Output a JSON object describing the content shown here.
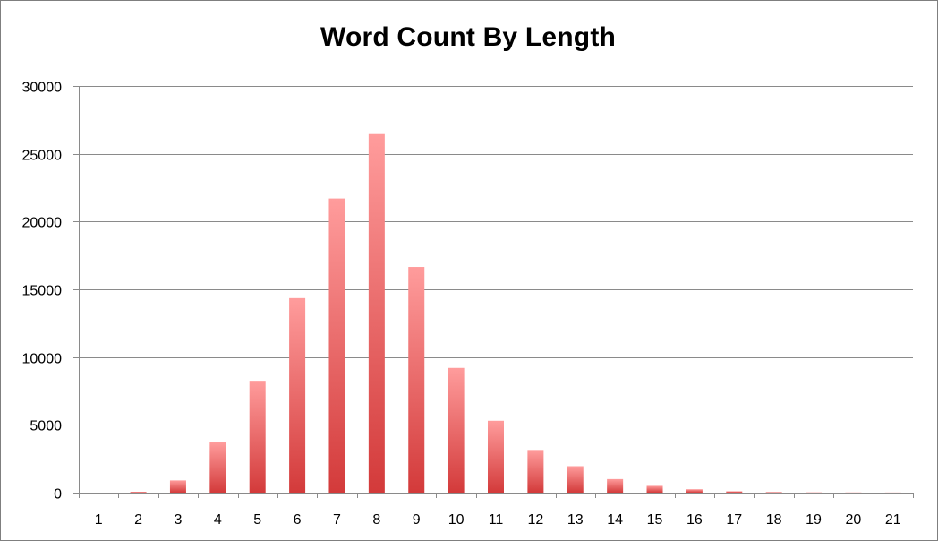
{
  "chart_data": {
    "type": "bar",
    "title": "Word Count By Length",
    "xlabel": "",
    "ylabel": "",
    "categories": [
      "1",
      "2",
      "3",
      "4",
      "5",
      "6",
      "7",
      "8",
      "9",
      "10",
      "11",
      "12",
      "13",
      "14",
      "15",
      "16",
      "17",
      "18",
      "19",
      "20",
      "21"
    ],
    "series": [
      {
        "values": [
          0,
          60,
          900,
          3700,
          8250,
          14350,
          21700,
          26450,
          16650,
          9200,
          5300,
          3150,
          1950,
          1000,
          500,
          250,
          100,
          40,
          20,
          15,
          10
        ]
      }
    ],
    "ylim": [
      0,
      30000
    ],
    "yticks": [
      "0",
      "5000",
      "10000",
      "15000",
      "20000",
      "25000",
      "30000"
    ],
    "grid": true,
    "legend": "none",
    "colors": {
      "bar_top": "#ff9c9c",
      "bar_bottom": "#d33a3a",
      "grid": "#8a8a8a",
      "axis": "#8a8a8a"
    }
  }
}
